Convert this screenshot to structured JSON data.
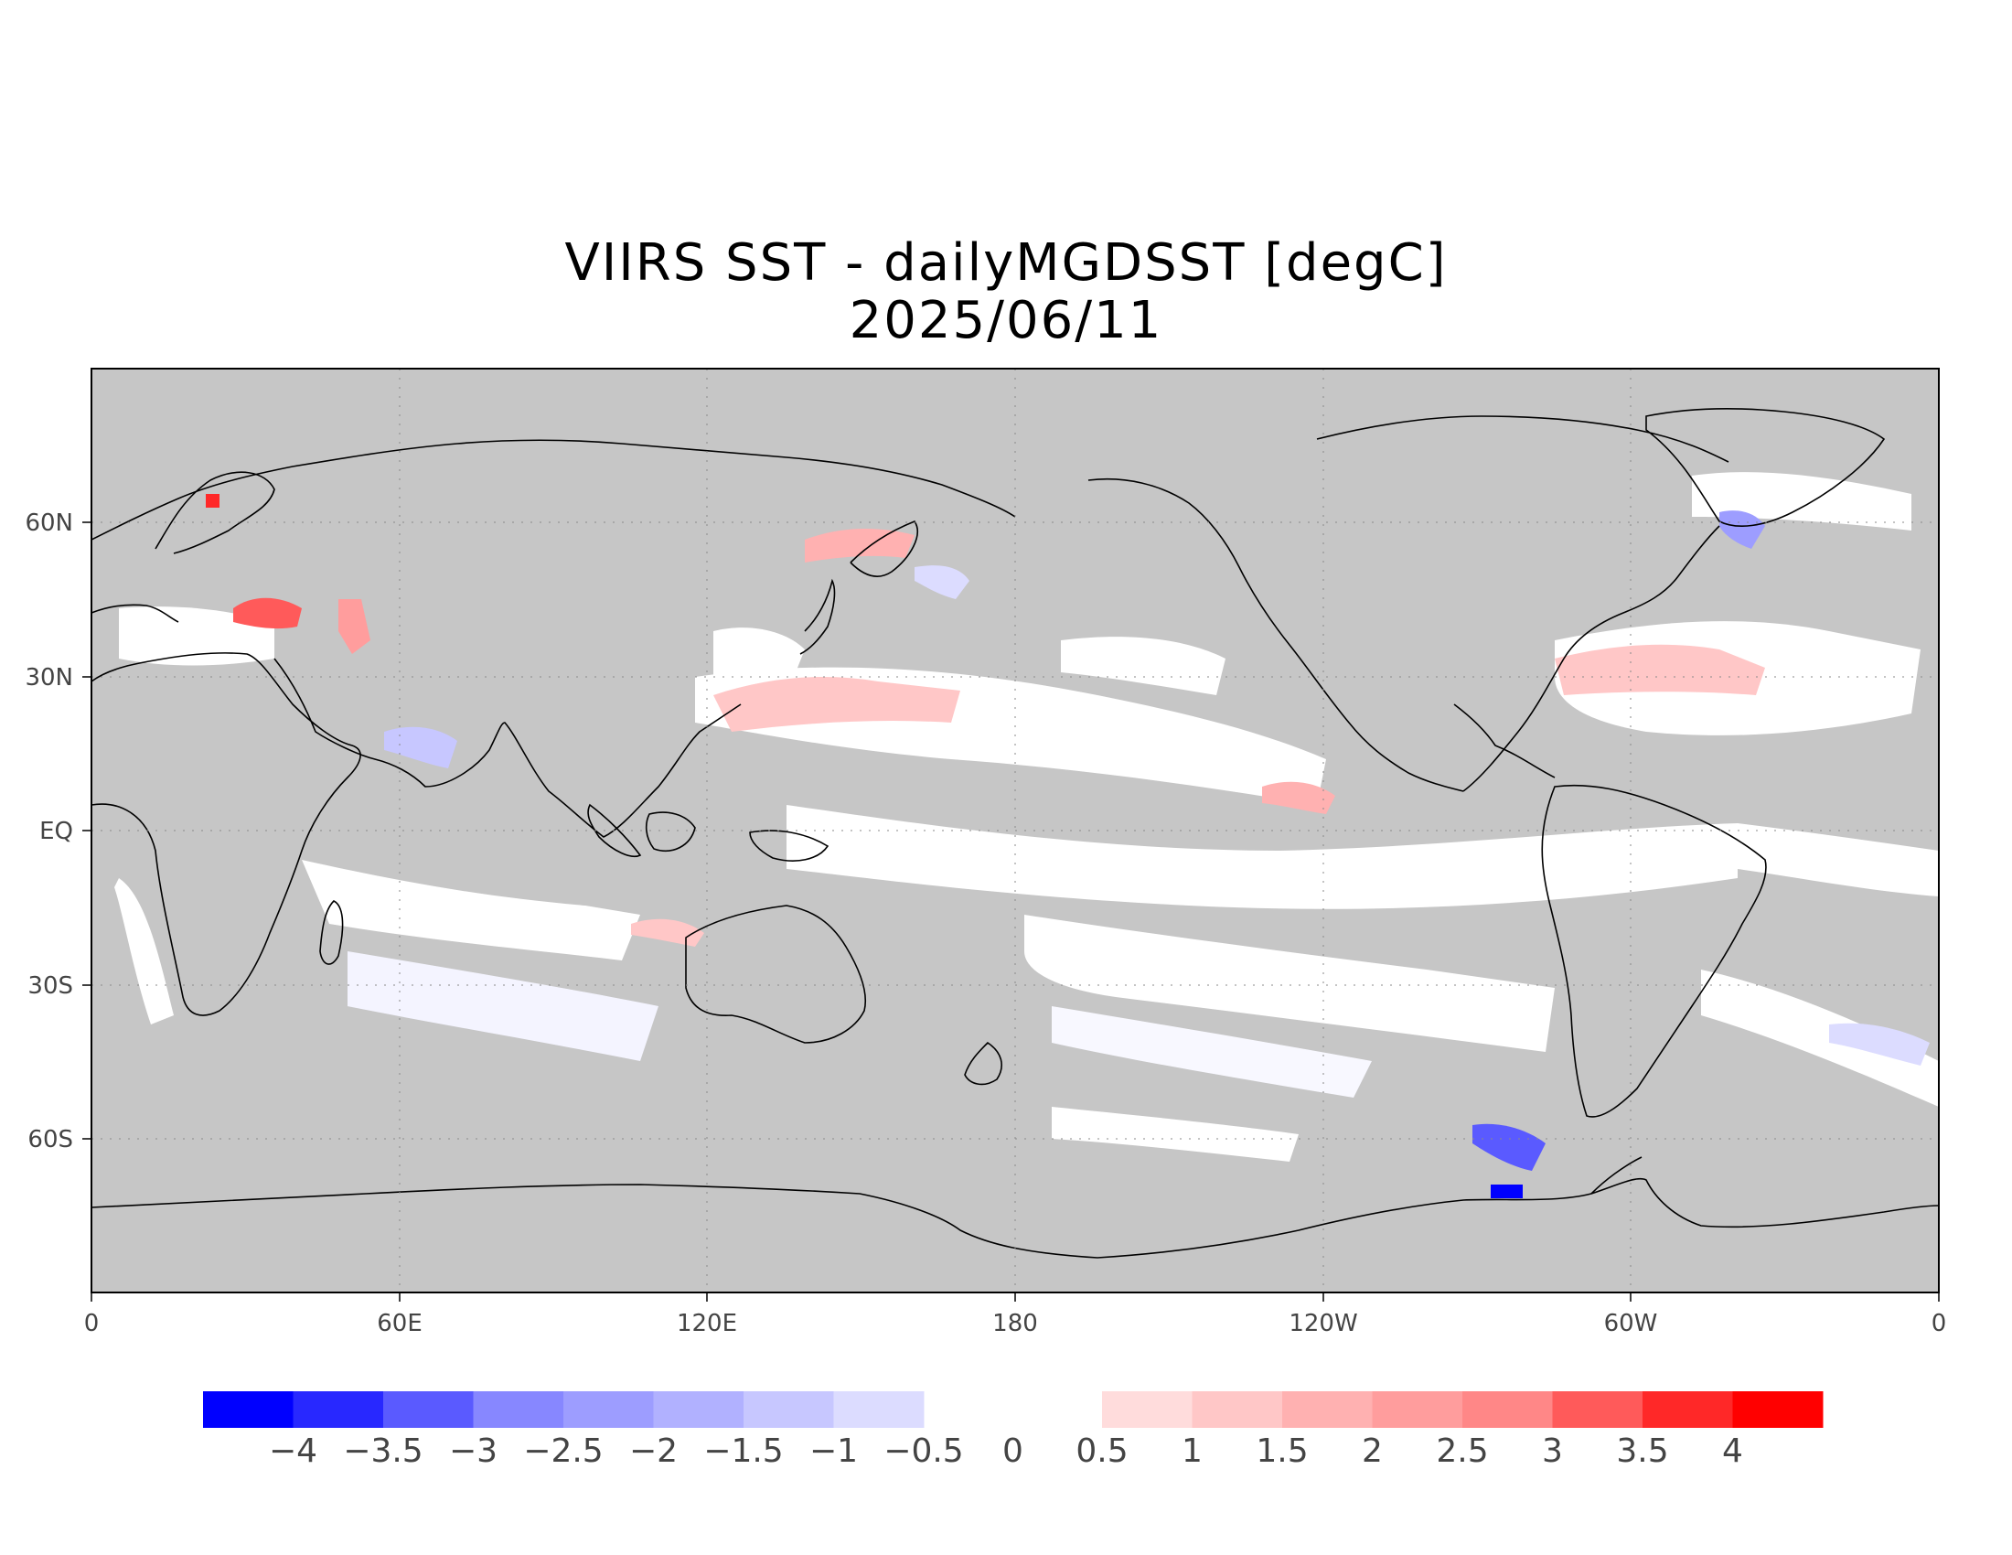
{
  "title": {
    "line1": "VIIRS SST - dailyMGDSST [degC]",
    "line2": "2025/06/11"
  },
  "map": {
    "projection": "equirectangular",
    "land_color": "#c6c6c6",
    "frame_color": "#000000",
    "lon_ticks": [
      "0",
      "60E",
      "120E",
      "180",
      "120W",
      "60W",
      "0"
    ],
    "lat_ticks": [
      "60N",
      "30N",
      "EQ",
      "30S",
      "60S"
    ],
    "gridlines": "dotted"
  },
  "colorbar": {
    "negative_colors": [
      "#0000ff",
      "#2828ff",
      "#5a5aff",
      "#8787ff",
      "#9d9dff",
      "#b1b1ff",
      "#c7c7ff",
      "#dcdcff"
    ],
    "positive_colors": [
      "#ffdcdc",
      "#ffc7c7",
      "#ffb1b1",
      "#ff9d9d",
      "#ff8787",
      "#ff5a5a",
      "#ff2828",
      "#ff0000"
    ],
    "labels": [
      "-4",
      "-3.5",
      "-3",
      "-2.5",
      "-2",
      "-1.5",
      "-1",
      "-0.5",
      "0",
      "0.5",
      "1",
      "1.5",
      "2",
      "2.5",
      "3",
      "3.5",
      "4"
    ]
  }
}
